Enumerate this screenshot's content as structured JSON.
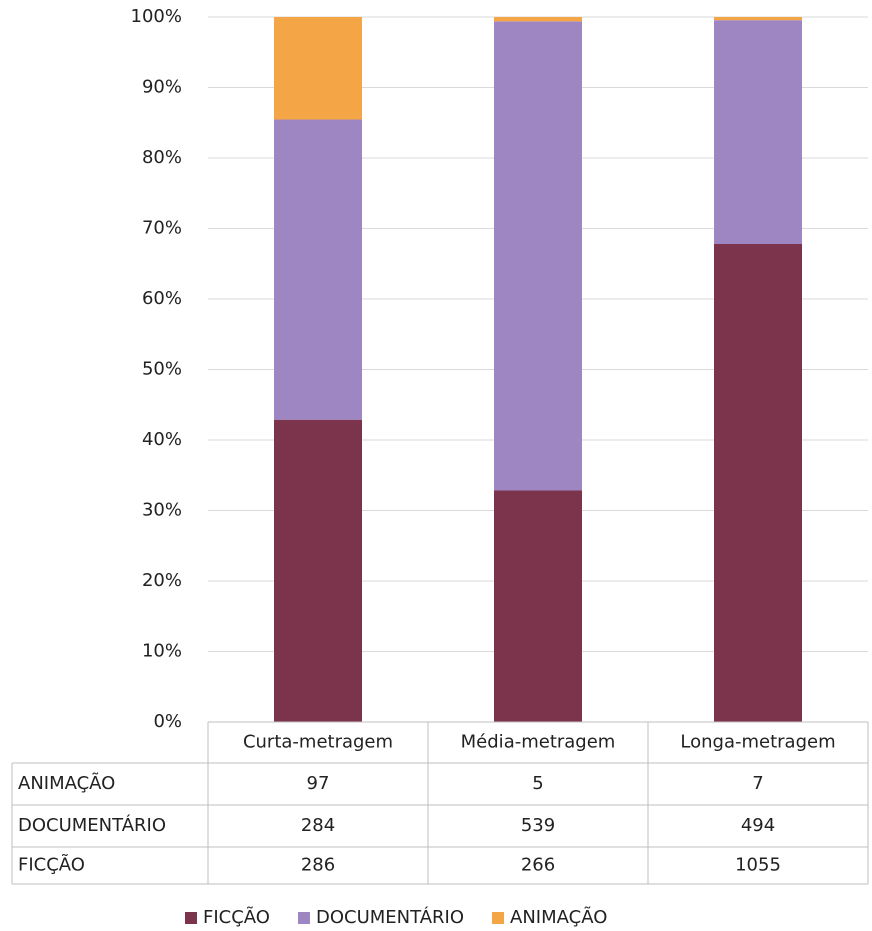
{
  "chart_data": {
    "type": "bar",
    "stacking": "percent",
    "categories": [
      "Curta-metragem",
      "Média-metragem",
      "Longa-metragem"
    ],
    "series": [
      {
        "name": "FICÇÃO",
        "color": "#7b344c",
        "values": [
          286,
          266,
          1055
        ]
      },
      {
        "name": "DOCUMENTÁRIO",
        "color": "#9e86c3",
        "values": [
          284,
          539,
          494
        ]
      },
      {
        "name": "ANIMAÇÃO",
        "color": "#f4a546",
        "values": [
          97,
          5,
          7
        ]
      }
    ],
    "ylim": [
      0,
      100
    ],
    "yticks": [
      {
        "value": 0,
        "label": "0%"
      },
      {
        "value": 10,
        "label": "10%"
      },
      {
        "value": 20,
        "label": "20%"
      },
      {
        "value": 30,
        "label": "30%"
      },
      {
        "value": 40,
        "label": "40%"
      },
      {
        "value": 50,
        "label": "50%"
      },
      {
        "value": 60,
        "label": "60%"
      },
      {
        "value": 70,
        "label": "70%"
      },
      {
        "value": 80,
        "label": "80%"
      },
      {
        "value": 90,
        "label": "90%"
      },
      {
        "value": 100,
        "label": "100%"
      }
    ],
    "grid": true,
    "legend": "bottom",
    "data_table": true
  }
}
